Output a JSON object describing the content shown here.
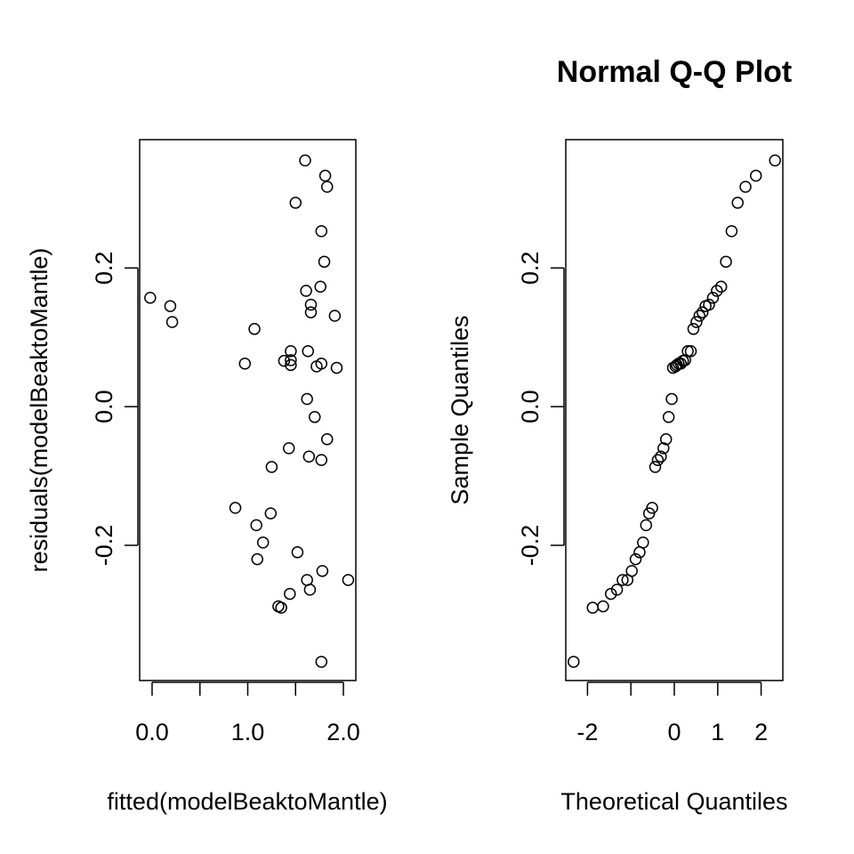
{
  "chart_data": [
    {
      "type": "scatter",
      "title": "",
      "xlabel": "fitted(modelBeaktoMantle)",
      "ylabel": "residuals(modelBeaktoMantle)",
      "xlim": [
        -0.13,
        2.13
      ],
      "ylim": [
        -0.395,
        0.385
      ],
      "x_ticks": [
        0,
        0.5,
        1,
        1.5,
        2
      ],
      "x_tick_labels": [
        "0.0",
        "",
        "1.0",
        "",
        "2.0"
      ],
      "y_ticks": [
        -0.2,
        0.0,
        0.2
      ],
      "y_tick_labels": [
        "-0.2",
        "0.0",
        "0.2"
      ],
      "grid": false,
      "points": [
        [
          -0.02,
          0.157
        ],
        [
          0.19,
          0.145
        ],
        [
          0.21,
          0.122
        ],
        [
          0.87,
          -0.146
        ],
        [
          0.97,
          0.062
        ],
        [
          1.07,
          0.112
        ],
        [
          1.09,
          -0.171
        ],
        [
          1.1,
          -0.22
        ],
        [
          1.16,
          -0.196
        ],
        [
          1.24,
          -0.154
        ],
        [
          1.25,
          -0.087
        ],
        [
          1.32,
          -0.288
        ],
        [
          1.35,
          -0.29
        ],
        [
          1.38,
          0.066
        ],
        [
          1.43,
          -0.06
        ],
        [
          1.44,
          -0.27
        ],
        [
          1.45,
          0.08
        ],
        [
          1.45,
          0.067
        ],
        [
          1.45,
          0.06
        ],
        [
          1.5,
          0.294
        ],
        [
          1.52,
          -0.21
        ],
        [
          1.6,
          0.355
        ],
        [
          1.61,
          0.167
        ],
        [
          1.62,
          -0.25
        ],
        [
          1.62,
          0.011
        ],
        [
          1.63,
          0.08
        ],
        [
          1.64,
          -0.072
        ],
        [
          1.65,
          -0.264
        ],
        [
          1.66,
          0.147
        ],
        [
          1.66,
          0.136
        ],
        [
          1.7,
          -0.015
        ],
        [
          1.72,
          0.058
        ],
        [
          1.76,
          0.173
        ],
        [
          1.77,
          0.253
        ],
        [
          1.77,
          0.062
        ],
        [
          1.77,
          -0.077
        ],
        [
          1.78,
          -0.237
        ],
        [
          1.77,
          -0.368
        ],
        [
          1.8,
          0.209
        ],
        [
          1.81,
          0.333
        ],
        [
          1.83,
          0.317
        ],
        [
          1.83,
          -0.047
        ],
        [
          1.91,
          0.131
        ],
        [
          1.93,
          0.056
        ],
        [
          2.05,
          -0.25
        ]
      ]
    },
    {
      "type": "scatter",
      "title": "Normal Q-Q Plot",
      "xlabel": "Theoretical Quantiles",
      "ylabel": "Sample Quantiles",
      "xlim": [
        -2.5,
        2.5
      ],
      "ylim": [
        -0.395,
        0.385
      ],
      "x_ticks": [
        -2,
        -1,
        0,
        1,
        2
      ],
      "x_tick_labels": [
        "-2",
        "",
        "0",
        "1",
        "2"
      ],
      "y_ticks": [
        -0.2,
        0.0,
        0.2
      ],
      "y_tick_labels": [
        "-0.2",
        "0.0",
        "0.2"
      ],
      "grid": false,
      "points": [
        [
          -2.32,
          -0.368
        ],
        [
          -1.88,
          -0.29
        ],
        [
          -1.64,
          -0.288
        ],
        [
          -1.46,
          -0.27
        ],
        [
          -1.32,
          -0.264
        ],
        [
          -1.19,
          -0.25
        ],
        [
          -1.08,
          -0.25
        ],
        [
          -0.98,
          -0.237
        ],
        [
          -0.89,
          -0.22
        ],
        [
          -0.8,
          -0.21
        ],
        [
          -0.72,
          -0.196
        ],
        [
          -0.65,
          -0.171
        ],
        [
          -0.58,
          -0.154
        ],
        [
          -0.51,
          -0.146
        ],
        [
          -0.44,
          -0.087
        ],
        [
          -0.38,
          -0.077
        ],
        [
          -0.31,
          -0.072
        ],
        [
          -0.25,
          -0.06
        ],
        [
          -0.19,
          -0.047
        ],
        [
          -0.13,
          -0.015
        ],
        [
          -0.06,
          0.011
        ],
        [
          -0.03,
          0.056
        ],
        [
          0.03,
          0.058
        ],
        [
          0.06,
          0.06
        ],
        [
          0.1,
          0.062
        ],
        [
          0.15,
          0.062
        ],
        [
          0.2,
          0.066
        ],
        [
          0.25,
          0.067
        ],
        [
          0.31,
          0.08
        ],
        [
          0.38,
          0.08
        ],
        [
          0.44,
          0.112
        ],
        [
          0.51,
          0.122
        ],
        [
          0.58,
          0.131
        ],
        [
          0.65,
          0.136
        ],
        [
          0.72,
          0.145
        ],
        [
          0.8,
          0.147
        ],
        [
          0.89,
          0.157
        ],
        [
          0.98,
          0.167
        ],
        [
          1.08,
          0.173
        ],
        [
          1.19,
          0.209
        ],
        [
          1.32,
          0.253
        ],
        [
          1.46,
          0.294
        ],
        [
          1.64,
          0.317
        ],
        [
          1.88,
          0.333
        ],
        [
          2.32,
          0.355
        ]
      ]
    }
  ]
}
